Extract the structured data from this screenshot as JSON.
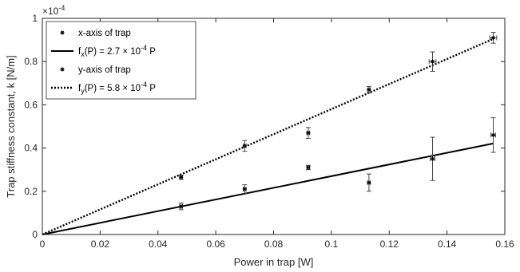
{
  "chart_data": {
    "type": "scatter",
    "xlabel": "Power in trap [W]",
    "ylabel": "Trap stiffness constant, k [N/m]",
    "xlim": [
      0,
      0.16
    ],
    "ylim": [
      0,
      1
    ],
    "x_ticks": [
      0,
      0.02,
      0.04,
      0.06,
      0.08,
      0.1,
      0.12,
      0.14,
      0.16
    ],
    "x_tick_labels": [
      "0",
      "0.02",
      "0.04",
      "0.06",
      "0.08",
      "0.1",
      "0.12",
      "0.14",
      "0.16"
    ],
    "y_ticks": [
      0,
      0.2,
      0.4,
      0.6,
      0.8,
      1
    ],
    "y_tick_labels": [
      "0",
      "0.2",
      "0.4",
      "0.6",
      "0.8",
      "1"
    ],
    "y_exponent": {
      "base": "×10",
      "power": "-4"
    },
    "grid": false,
    "legend_position": "top-left",
    "series": [
      {
        "name": "x-axis of trap",
        "marker": "asterisk",
        "x": [
          0.048,
          0.07,
          0.092,
          0.113,
          0.135,
          0.156
        ],
        "y": [
          0.13,
          0.21,
          0.31,
          0.24,
          0.35,
          0.46
        ],
        "y_err": [
          0.015,
          0.02,
          0.01,
          0.04,
          0.1,
          0.08
        ],
        "x_err": [
          0.0005,
          0.0005,
          0.0005,
          0.0005,
          0.0008,
          0.0008
        ]
      },
      {
        "name": "y-axis of trap",
        "marker": "asterisk",
        "x": [
          0.048,
          0.07,
          0.092,
          0.113,
          0.135,
          0.156
        ],
        "y": [
          0.265,
          0.41,
          0.47,
          0.67,
          0.8,
          0.91
        ],
        "y_err": [
          0.01,
          0.025,
          0.025,
          0.015,
          0.045,
          0.025
        ],
        "x_err": [
          0.0005,
          0.0005,
          0.0005,
          0.0005,
          0.0012,
          0.0012
        ]
      }
    ],
    "fits": [
      {
        "label_name": "f",
        "label_sub": "x",
        "label_rest": "(P) = 2.7 × 10",
        "label_sup": "-4",
        "label_end": " P",
        "slope": 2.7,
        "style": "solid",
        "x_range": [
          0,
          0.156
        ]
      },
      {
        "label_name": "f",
        "label_sub": "y",
        "label_rest": "(P) = 5.8 × 10",
        "label_sup": "-4",
        "label_end": " P",
        "slope": 5.8,
        "style": "dotted",
        "x_range": [
          0,
          0.156
        ]
      }
    ]
  }
}
